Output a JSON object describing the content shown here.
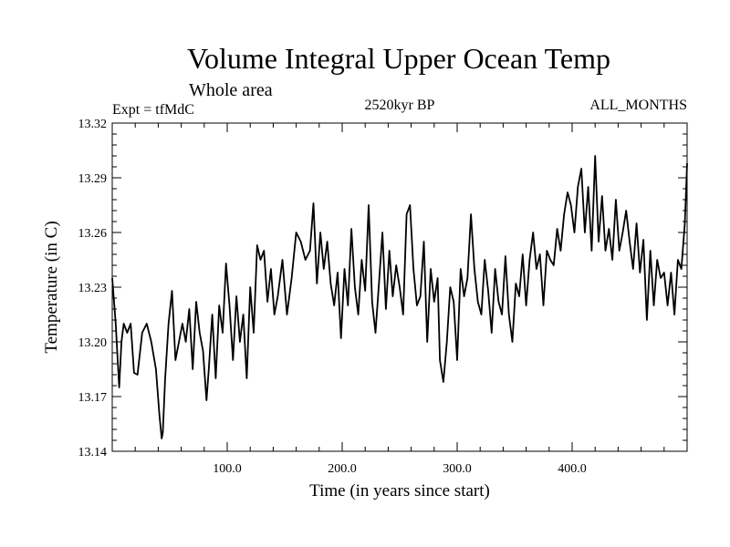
{
  "chart_data": {
    "type": "line",
    "title": "Volume Integral Upper Ocean Temp",
    "subtitle": "Whole area",
    "experiment": "Expt = tfMdC",
    "period": "2520kyr BP",
    "months": "ALL_MONTHS",
    "xlabel": "Time (in years since start)",
    "ylabel": "Temperature (in C)",
    "xlim": [
      0,
      500
    ],
    "ylim": [
      13.14,
      13.32
    ],
    "x_ticks": [
      100,
      200,
      300,
      400
    ],
    "x_tick_labels": [
      "100.0",
      "200.0",
      "300.0",
      "400.0"
    ],
    "y_ticks": [
      13.14,
      13.17,
      13.2,
      13.23,
      13.26,
      13.29,
      13.32
    ],
    "y_tick_labels": [
      "13.14",
      "13.17",
      "13.20",
      "13.23",
      "13.26",
      "13.29",
      "13.32"
    ],
    "grid": false,
    "series": [
      {
        "name": "Temperature",
        "x": [
          0,
          3,
          6,
          8,
          10,
          13,
          16,
          19,
          22,
          26,
          30,
          34,
          38,
          41,
          43,
          44,
          46,
          49,
          52,
          55,
          58,
          61,
          64,
          67,
          70,
          73,
          76,
          79,
          82,
          84,
          87,
          90,
          93,
          96,
          99,
          102,
          105,
          108,
          111,
          114,
          117,
          120,
          123,
          126,
          129,
          132,
          135,
          138,
          141,
          144,
          148,
          152,
          156,
          160,
          164,
          168,
          172,
          175,
          178,
          181,
          184,
          187,
          190,
          193,
          196,
          199,
          202,
          205,
          208,
          211,
          214,
          217,
          220,
          223,
          226,
          229,
          232,
          235,
          238,
          241,
          244,
          247,
          250,
          253,
          256,
          259,
          262,
          265,
          268,
          271,
          274,
          277,
          280,
          283,
          285,
          288,
          291,
          294,
          297,
          300,
          303,
          306,
          309,
          312,
          315,
          318,
          321,
          324,
          327,
          330,
          333,
          336,
          339,
          342,
          345,
          348,
          351,
          354,
          357,
          360,
          363,
          366,
          369,
          372,
          375,
          378,
          381,
          384,
          387,
          390,
          393,
          396,
          399,
          402,
          405,
          408,
          411,
          414,
          417,
          420,
          423,
          426,
          429,
          432,
          435,
          438,
          441,
          444,
          447,
          450,
          453,
          456,
          459,
          462,
          465,
          468,
          471,
          474,
          477,
          480,
          483,
          486,
          489,
          492,
          495,
          498,
          500
        ],
        "values": [
          13.235,
          13.21,
          13.175,
          13.2,
          13.21,
          13.205,
          13.21,
          13.183,
          13.182,
          13.205,
          13.21,
          13.2,
          13.185,
          13.16,
          13.147,
          13.15,
          13.18,
          13.21,
          13.228,
          13.19,
          13.2,
          13.21,
          13.2,
          13.218,
          13.185,
          13.222,
          13.205,
          13.195,
          13.168,
          13.185,
          13.215,
          13.18,
          13.22,
          13.205,
          13.243,
          13.22,
          13.19,
          13.225,
          13.2,
          13.215,
          13.18,
          13.23,
          13.205,
          13.253,
          13.245,
          13.25,
          13.222,
          13.24,
          13.215,
          13.225,
          13.245,
          13.215,
          13.235,
          13.26,
          13.255,
          13.245,
          13.25,
          13.276,
          13.232,
          13.26,
          13.24,
          13.255,
          13.232,
          13.22,
          13.238,
          13.202,
          13.24,
          13.22,
          13.262,
          13.23,
          13.215,
          13.245,
          13.228,
          13.275,
          13.222,
          13.205,
          13.232,
          13.26,
          13.218,
          13.25,
          13.225,
          13.242,
          13.23,
          13.215,
          13.27,
          13.275,
          13.24,
          13.22,
          13.225,
          13.255,
          13.2,
          13.24,
          13.222,
          13.235,
          13.19,
          13.178,
          13.2,
          13.23,
          13.222,
          13.19,
          13.24,
          13.225,
          13.235,
          13.27,
          13.24,
          13.222,
          13.215,
          13.245,
          13.228,
          13.205,
          13.24,
          13.222,
          13.215,
          13.247,
          13.215,
          13.2,
          13.232,
          13.225,
          13.248,
          13.22,
          13.245,
          13.26,
          13.24,
          13.248,
          13.22,
          13.25,
          13.245,
          13.242,
          13.262,
          13.25,
          13.27,
          13.282,
          13.275,
          13.26,
          13.285,
          13.295,
          13.26,
          13.285,
          13.25,
          13.302,
          13.255,
          13.28,
          13.25,
          13.262,
          13.245,
          13.278,
          13.25,
          13.26,
          13.272,
          13.255,
          13.24,
          13.265,
          13.238,
          13.256,
          13.212,
          13.25,
          13.22,
          13.245,
          13.235,
          13.238,
          13.22,
          13.238,
          13.215,
          13.245,
          13.24,
          13.265,
          13.298
        ]
      }
    ]
  }
}
